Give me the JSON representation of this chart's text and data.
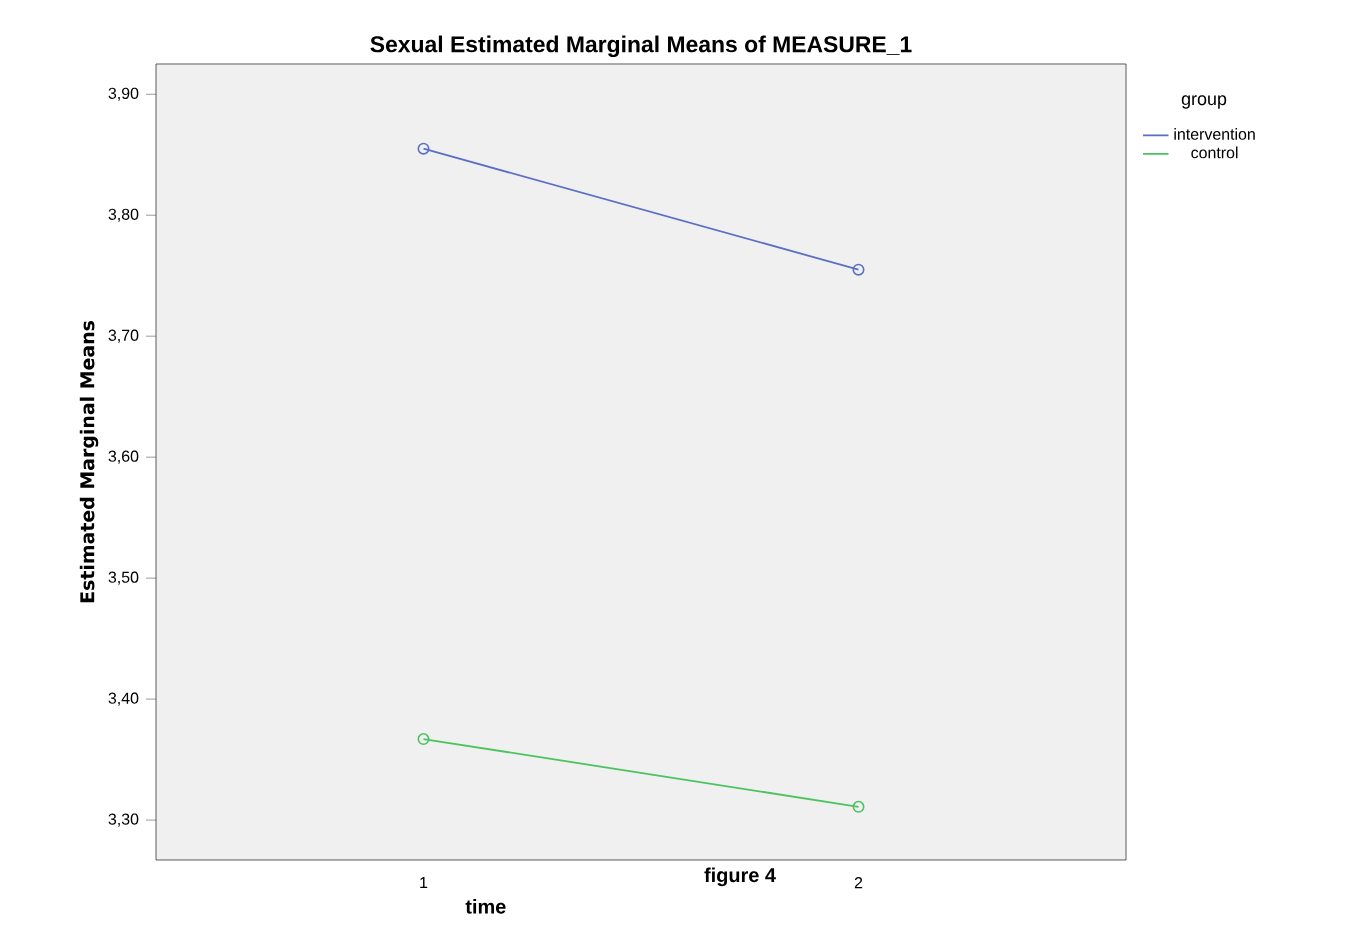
{
  "chart_data": {
    "type": "line",
    "title": "Sexual   Estimated Marginal Means of MEASURE_1",
    "xlabel": "time",
    "ylabel": "Estimated Marginal Means",
    "legend_title": "group",
    "annotations": [
      "figure   4"
    ],
    "categories": [
      "1",
      "2"
    ],
    "series": [
      {
        "name": "intervention",
        "color": "#5b6fc4",
        "values": [
          3.855,
          3.755
        ]
      },
      {
        "name": "control",
        "color": "#4cc35f",
        "values": [
          3.367,
          3.311
        ]
      }
    ],
    "ylim": [
      3.267,
      3.925
    ],
    "yticks": [
      {
        "value": 3.3,
        "label": "3,30"
      },
      {
        "value": 3.4,
        "label": "3,40"
      },
      {
        "value": 3.5,
        "label": "3,50"
      },
      {
        "value": 3.6,
        "label": "3,60"
      },
      {
        "value": 3.7,
        "label": "3,70"
      },
      {
        "value": 3.8,
        "label": "3,80"
      },
      {
        "value": 3.9,
        "label": "3,90"
      }
    ],
    "marker": "circle",
    "line_style": "solid",
    "legend": "top right",
    "grid": false
  }
}
